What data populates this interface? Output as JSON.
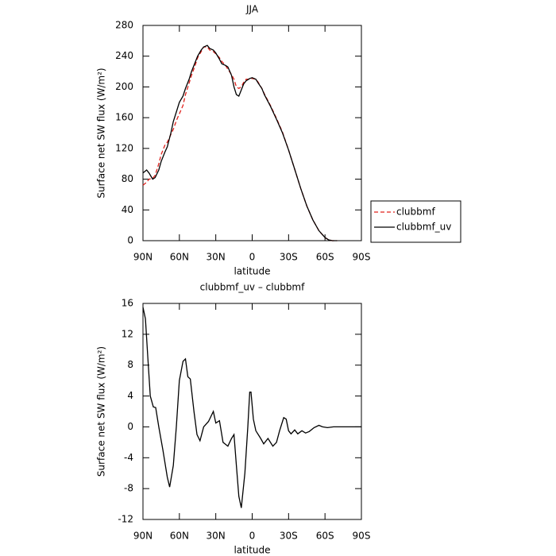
{
  "chart_data": [
    {
      "type": "line",
      "title": "JJA",
      "xlabel": "latitude",
      "ylabel": "Surface net SW flux (W/m²)",
      "xlim": [
        90,
        -90
      ],
      "xticks": [
        {
          "value": 90,
          "label": "90N"
        },
        {
          "value": 60,
          "label": "60N"
        },
        {
          "value": 30,
          "label": "30N"
        },
        0,
        {
          "value": -30,
          "label": "30S"
        },
        {
          "value": -60,
          "label": "60S"
        },
        {
          "value": -90,
          "label": "90S"
        }
      ],
      "ylim": [
        0,
        280
      ],
      "yticks": [
        0,
        40,
        80,
        120,
        160,
        200,
        240,
        280
      ],
      "legend": "right",
      "x": [
        90,
        87,
        85,
        82,
        80,
        77,
        75,
        72,
        70,
        67,
        65,
        62,
        60,
        57,
        55,
        52,
        50,
        47,
        45,
        42,
        40,
        37,
        35,
        32,
        30,
        27,
        25,
        22,
        20,
        17,
        15,
        13,
        11,
        9,
        7,
        5,
        2,
        0,
        -3,
        -5,
        -8,
        -10,
        -15,
        -20,
        -25,
        -30,
        -35,
        -40,
        -45,
        -50,
        -55,
        -60,
        -63,
        -66,
        -70
      ],
      "series": [
        {
          "name": "clubbmf",
          "color": "#e0201b",
          "dash": true,
          "values": [
            72,
            76,
            80,
            81,
            85,
            100,
            112,
            124,
            128,
            138,
            145,
            158,
            165,
            176,
            190,
            205,
            215,
            228,
            238,
            246,
            252,
            252,
            248,
            246,
            243,
            238,
            233,
            228,
            223,
            216,
            210,
            200,
            198,
            200,
            206,
            210,
            210,
            211,
            210,
            206,
            198,
            191,
            176,
            159,
            141,
            118,
            93,
            68,
            45,
            27,
            13,
            4,
            1,
            0,
            0
          ]
        },
        {
          "name": "clubbmf_uv",
          "color": "#000000",
          "dash": false,
          "values": [
            88,
            92,
            88,
            80,
            82,
            92,
            103,
            115,
            122,
            140,
            155,
            170,
            180,
            188,
            198,
            210,
            220,
            232,
            240,
            248,
            252,
            254,
            250,
            248,
            244,
            236,
            230,
            228,
            226,
            215,
            200,
            190,
            188,
            196,
            204,
            208,
            211,
            212,
            210,
            205,
            198,
            190,
            175,
            158,
            140,
            118,
            93,
            68,
            45,
            27,
            13,
            4,
            1,
            0,
            0
          ]
        }
      ]
    },
    {
      "type": "line",
      "title": "clubbmf_uv – clubbmf",
      "xlabel": "latitude",
      "ylabel": "Surface net SW flux (W/m²)",
      "xlim": [
        90,
        -90
      ],
      "xticks": [
        {
          "value": 90,
          "label": "90N"
        },
        {
          "value": 60,
          "label": "60N"
        },
        {
          "value": 30,
          "label": "30N"
        },
        0,
        {
          "value": -30,
          "label": "30S"
        },
        {
          "value": -60,
          "label": "60S"
        },
        {
          "value": -90,
          "label": "90S"
        }
      ],
      "ylim": [
        -12,
        16
      ],
      "yticks": [
        -12,
        -8,
        -4,
        0,
        4,
        8,
        12,
        16
      ],
      "x": [
        90,
        88,
        86,
        84,
        81.5,
        79.5,
        77,
        73.6,
        70,
        68,
        65,
        62.5,
        60,
        57,
        55,
        53,
        51,
        48,
        45.5,
        43,
        40,
        36,
        32,
        30,
        27,
        24,
        20,
        17,
        15,
        13,
        11,
        9,
        6,
        3.6,
        2,
        1,
        -1,
        -3,
        -7,
        -9.5,
        -13,
        -17,
        -20,
        -22.6,
        -26,
        -28,
        -30,
        -32,
        -35,
        -37.6,
        -41,
        -44,
        -47,
        -51,
        -55,
        -58,
        -62,
        -67,
        -90
      ],
      "series": [
        {
          "color": "#000000",
          "values": [
            15.5,
            14,
            9,
            4,
            2.6,
            2.5,
            0,
            -3,
            -6.5,
            -7.8,
            -5,
            0,
            6,
            8.5,
            8.8,
            6.5,
            6.2,
            2,
            -1,
            -1.8,
            0,
            0.7,
            2,
            0.5,
            0.8,
            -2,
            -2.5,
            -1.5,
            -1,
            -5,
            -9,
            -10.5,
            -6,
            0,
            4.5,
            4.5,
            1,
            -0.5,
            -1.5,
            -2.2,
            -1.5,
            -2.5,
            -2,
            -0.5,
            1.2,
            1,
            -0.5,
            -0.9,
            -0.4,
            -0.9,
            -0.5,
            -0.8,
            -0.6,
            -0.1,
            0.2,
            0,
            -0.1,
            0,
            0
          ]
        }
      ]
    }
  ]
}
